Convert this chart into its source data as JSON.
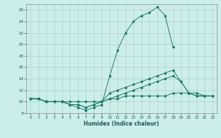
{
  "title": "",
  "xlabel": "Humidex (Indice chaleur)",
  "x_values": [
    0,
    1,
    2,
    3,
    4,
    5,
    6,
    7,
    8,
    9,
    10,
    11,
    12,
    13,
    14,
    15,
    16,
    17,
    18,
    19,
    20,
    21,
    22,
    23
  ],
  "line1": [
    10.5,
    10.5,
    10.0,
    10.0,
    10.0,
    9.5,
    9.0,
    8.5,
    9.0,
    9.5,
    14.5,
    19.0,
    22.0,
    24.0,
    25.0,
    25.5,
    26.5,
    25.0,
    19.5,
    null,
    null,
    null,
    null,
    null
  ],
  "line2": [
    10.5,
    10.5,
    10.0,
    10.0,
    10.0,
    9.5,
    9.5,
    9.0,
    9.5,
    10.0,
    11.5,
    12.0,
    12.5,
    13.0,
    13.5,
    14.0,
    14.5,
    15.0,
    15.5,
    13.5,
    11.5,
    11.0,
    11.0,
    null
  ],
  "line3": [
    10.5,
    10.5,
    10.0,
    10.0,
    10.0,
    9.5,
    9.5,
    9.0,
    9.5,
    10.0,
    10.5,
    11.0,
    11.5,
    12.0,
    12.5,
    13.0,
    13.5,
    14.0,
    14.5,
    13.5,
    11.5,
    11.0,
    11.0,
    11.0
  ],
  "line4": [
    10.5,
    10.5,
    10.0,
    10.0,
    10.0,
    10.0,
    10.0,
    10.0,
    10.0,
    10.0,
    10.5,
    10.5,
    11.0,
    11.0,
    11.0,
    11.0,
    11.0,
    11.0,
    11.5,
    11.5,
    11.5,
    11.5,
    11.0,
    11.0
  ],
  "line_color": "#1a7a6a",
  "bg_color": "#cceee8",
  "grid_color": "#b0cece",
  "ylim": [
    8,
    27
  ],
  "xlim": [
    -0.5,
    23.5
  ],
  "yticks": [
    8,
    10,
    12,
    14,
    16,
    18,
    20,
    22,
    24,
    26
  ],
  "xticks": [
    0,
    1,
    2,
    3,
    4,
    5,
    6,
    7,
    8,
    9,
    10,
    11,
    12,
    13,
    14,
    15,
    16,
    17,
    18,
    19,
    20,
    21,
    22,
    23
  ]
}
